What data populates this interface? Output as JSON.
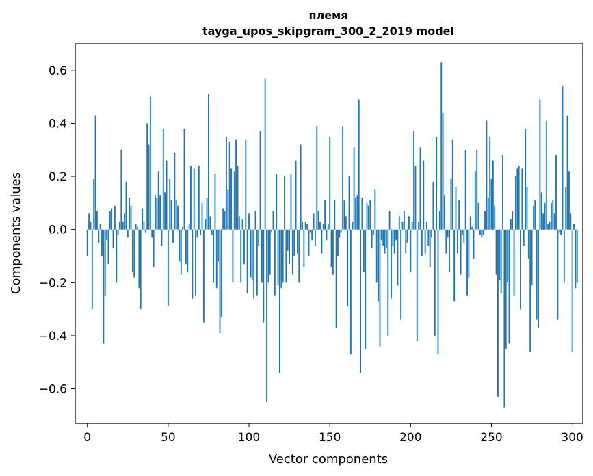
{
  "chart_data": {
    "type": "bar",
    "title": "племя",
    "subtitle": "tayga_upos_skipgram_300_2_2019 model",
    "xlabel": "Vector components",
    "ylabel": "Components values",
    "xlim": [
      -7.5,
      306.5
    ],
    "ylim": [
      -0.73,
      0.7
    ],
    "xticks": [
      0,
      50,
      100,
      150,
      200,
      250,
      300
    ],
    "xtick_labels": [
      "0",
      "50",
      "100",
      "150",
      "200",
      "250",
      "300"
    ],
    "yticks": [
      -0.6,
      -0.4,
      -0.2,
      0.0,
      0.2,
      0.4,
      0.6
    ],
    "ytick_labels": [
      "−0.6",
      "−0.4",
      "−0.2",
      "0.0",
      "0.2",
      "0.4",
      "0.6"
    ],
    "grid": false,
    "bar_color": "#1f77b4",
    "values": [
      -0.1,
      0.06,
      0.03,
      -0.3,
      0.19,
      0.43,
      0.07,
      -0.05,
      0.02,
      -0.1,
      -0.43,
      -0.25,
      -0.04,
      -0.13,
      0.07,
      0.08,
      -0.07,
      0.09,
      -0.2,
      -0.02,
      0.03,
      0.3,
      0.03,
      0.06,
      0.18,
      -0.03,
      0.12,
      0.09,
      -0.16,
      -0.18,
      0.02,
      0.01,
      -0.22,
      -0.3,
      0.08,
      0.03,
      -0.01,
      0.4,
      0.32,
      0.5,
      -0.03,
      -0.14,
      0.13,
      0.12,
      0.22,
      0.13,
      -0.06,
      0.38,
      0.14,
      0.26,
      -0.29,
      0.19,
      0.11,
      -0.05,
      0.29,
      0.11,
      0.09,
      -0.12,
      -0.17,
      0.01,
      0.38,
      -0.13,
      -0.16,
      0.02,
      0.24,
      -0.26,
      0.23,
      -0.25,
      -0.03,
      0.24,
      -0.02,
      0.1,
      -0.35,
      0.04,
      0.12,
      0.51,
      0.05,
      -0.02,
      -0.2,
      0.21,
      -0.22,
      -0.12,
      -0.39,
      -0.33,
      0.08,
      0.07,
      0.35,
      0.15,
      0.33,
      0.23,
      -0.2,
      0.22,
      0.34,
      0.24,
      0.05,
      -0.2,
      0.04,
      -0.13,
      0.34,
      -0.24,
      0.06,
      -0.18,
      -0.19,
      -0.26,
      0.07,
      -0.25,
      -0.06,
      0.37,
      -0.2,
      -0.35,
      0.57,
      -0.65,
      -0.2,
      -0.17,
      -0.01,
      0.07,
      -0.25,
      0.21,
      -0.21,
      -0.54,
      -0.22,
      -0.2,
      0.2,
      -0.2,
      -0.08,
      -0.13,
      0.21,
      -0.17,
      -0.1,
      0.26,
      -0.09,
      -0.2,
      0.32,
      0.03,
      -0.14,
      0.03,
      0.02,
      -0.1,
      -0.01,
      -0.04,
      0.06,
      -0.06,
      0.39,
      0.07,
      0.03,
      -0.09,
      0.02,
      0.11,
      -0.04,
      0.02,
      0.35,
      -0.14,
      -0.17,
      0.11,
      -0.37,
      -0.1,
      -0.03,
      -0.01,
      0.39,
      0.11,
      0.05,
      -0.29,
      0.2,
      -0.47,
      0.03,
      0.31,
      0.12,
      0.13,
      0.49,
      -0.54,
      0.12,
      -0.16,
      -0.45,
      0.1,
      0.09,
      0.11,
      -0.07,
      -0.02,
      0.15,
      -0.2,
      -0.27,
      -0.44,
      -0.04,
      -0.06,
      -0.09,
      -0.07,
      -0.4,
      0.07,
      -0.26,
      -0.06,
      -0.09,
      -0.04,
      -0.21,
      0.05,
      -0.34,
      0.03,
      0.07,
      -0.09,
      -0.05,
      0.05,
      -0.16,
      0.03,
      0.37,
      0.24,
      -0.42,
      0.03,
      0.31,
      -0.1,
      0.26,
      -0.09,
      0.03,
      -0.06,
      -0.14,
      -0.03,
      0.18,
      -0.4,
      0.35,
      -0.47,
      0.07,
      0.63,
      0.44,
      0.13,
      -0.09,
      -0.03,
      -0.16,
      0.19,
      0.34,
      -0.27,
      0.16,
      -0.09,
      0.11,
      -0.17,
      -0.02,
      -0.05,
      0.3,
      -0.25,
      -0.18,
      0.05,
      0.01,
      -0.11,
      0.22,
      0.3,
      0.1,
      -0.02,
      -0.03,
      -0.02,
      0.07,
      0.41,
      0.12,
      0.35,
      0.19,
      0.26,
      0.09,
      -0.17,
      -0.63,
      -0.19,
      -0.24,
      0.28,
      -0.67,
      -0.45,
      -0.2,
      -0.43,
      0.04,
      0.07,
      -0.25,
      0.2,
      0.23,
      0.24,
      -0.3,
      0.23,
      -0.06,
      0.38,
      0.16,
      -0.11,
      -0.46,
      -0.21,
      0.09,
      0.11,
      -0.34,
      -0.37,
      0.49,
      0.14,
      0.06,
      0.1,
      0.41,
      0.02,
      0.03,
      0.1,
      0.11,
      0.06,
      0.28,
      -0.34,
      -0.01,
      -0.02,
      0.54,
      -0.2,
      0.16,
      0.43,
      0.22,
      0.06,
      -0.46,
      0.02,
      -0.22,
      -0.2
    ]
  }
}
